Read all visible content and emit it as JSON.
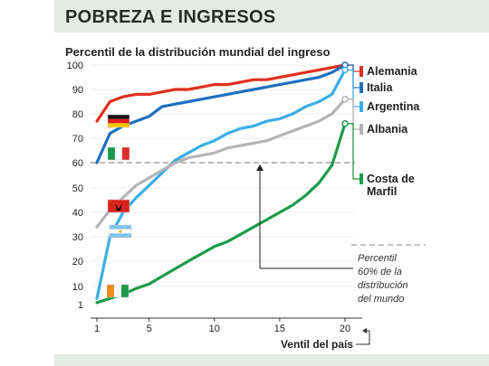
{
  "title": "POBREZA E INGRESOS",
  "chart_data": {
    "type": "line",
    "ylabel": "Percentil de la distribución mundial del ingreso",
    "xlabel": "Ventil del país",
    "x": [
      1,
      2,
      3,
      4,
      5,
      6,
      7,
      8,
      9,
      10,
      11,
      12,
      13,
      14,
      15,
      16,
      17,
      18,
      19,
      20
    ],
    "x_ticks": [
      1,
      5,
      10,
      15,
      20
    ],
    "y_ticks": [
      1,
      10,
      20,
      30,
      40,
      50,
      60,
      70,
      80,
      90,
      100
    ],
    "reference_line": {
      "y": 60,
      "style": "dashed"
    },
    "annotation": "Percentil 60% de la distribución del mundo",
    "series": [
      {
        "name": "Alemania",
        "color": "#e0301e",
        "values": [
          77,
          85,
          87,
          88,
          88,
          89,
          90,
          90,
          91,
          92,
          92,
          93,
          94,
          94,
          95,
          96,
          97,
          98,
          99,
          100
        ]
      },
      {
        "name": "Italia",
        "color": "#1f6fbf",
        "values": [
          60,
          72,
          75,
          77,
          79,
          83,
          84,
          85,
          86,
          87,
          88,
          89,
          90,
          91,
          92,
          93,
          94,
          95,
          97,
          100
        ]
      },
      {
        "name": "Argentina",
        "color": "#3aaee6",
        "values": [
          4,
          30,
          40,
          46,
          51,
          56,
          61,
          64,
          67,
          69,
          72,
          74,
          75,
          77,
          78,
          80,
          83,
          85,
          88,
          98
        ]
      },
      {
        "name": "Albania",
        "color": "#b4b4b4",
        "values": [
          34,
          41,
          46,
          51,
          54,
          57,
          60,
          62,
          63,
          64,
          66,
          67,
          68,
          69,
          71,
          73,
          75,
          77,
          80,
          86
        ]
      },
      {
        "name": "Costa de Marfil",
        "color": "#1d9a4a",
        "values": [
          2,
          4,
          6,
          9,
          11,
          14,
          17,
          20,
          23,
          26,
          28,
          31,
          34,
          37,
          40,
          43,
          47,
          52,
          59,
          76
        ]
      }
    ]
  }
}
